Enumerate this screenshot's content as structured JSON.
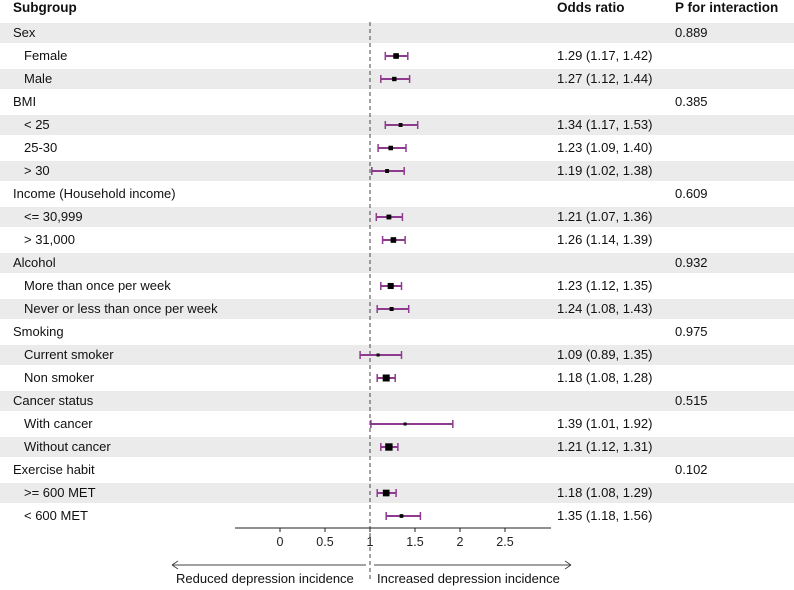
{
  "headers": {
    "subgroup": "Subgroup",
    "odds_ratio": "Odds ratio",
    "p_interaction": "P for interaction"
  },
  "directions": {
    "left": "Reduced depression incidence",
    "right": "Increased depression incidence"
  },
  "colors": {
    "ci_line": "#8e3a8e",
    "point": "#000000",
    "band": "#ebebeb",
    "ref_line": "#444444"
  },
  "chart_data": {
    "type": "forest",
    "xlabel": "",
    "ylabel": "",
    "xlim": [
      -0.5,
      3.0
    ],
    "xticks": [
      0,
      0.5,
      1,
      1.5,
      2,
      2.5
    ],
    "xtick_labels": [
      "0",
      "0.5",
      "1",
      "1.5",
      "2",
      "2.5"
    ],
    "reference": 1,
    "rows": [
      {
        "label": "Sex",
        "group": true,
        "p": "0.889"
      },
      {
        "label": "Female",
        "group": false,
        "or": 1.29,
        "lo": 1.17,
        "hi": 1.42,
        "text": "1.29 (1.17, 1.42)"
      },
      {
        "label": "Male",
        "group": false,
        "or": 1.27,
        "lo": 1.12,
        "hi": 1.44,
        "text": "1.27 (1.12, 1.44)"
      },
      {
        "label": "BMI",
        "group": true,
        "p": "0.385"
      },
      {
        "label": "< 25",
        "group": false,
        "or": 1.34,
        "lo": 1.17,
        "hi": 1.53,
        "text": "1.34 (1.17, 1.53)"
      },
      {
        "label": "25-30",
        "group": false,
        "or": 1.23,
        "lo": 1.09,
        "hi": 1.4,
        "text": "1.23 (1.09, 1.40)"
      },
      {
        "label": "> 30",
        "group": false,
        "or": 1.19,
        "lo": 1.02,
        "hi": 1.38,
        "text": "1.19 (1.02, 1.38)"
      },
      {
        "label": "Income (Household income)",
        "group": true,
        "p": "0.609"
      },
      {
        "label": "<= 30,999",
        "group": false,
        "or": 1.21,
        "lo": 1.07,
        "hi": 1.36,
        "text": "1.21 (1.07, 1.36)"
      },
      {
        "label": "> 31,000",
        "group": false,
        "or": 1.26,
        "lo": 1.14,
        "hi": 1.39,
        "text": "1.26 (1.14, 1.39)"
      },
      {
        "label": "Alcohol",
        "group": true,
        "p": "0.932"
      },
      {
        "label": "More than once per week",
        "group": false,
        "or": 1.23,
        "lo": 1.12,
        "hi": 1.35,
        "text": "1.23 (1.12, 1.35)"
      },
      {
        "label": "Never or less than once per week",
        "group": false,
        "or": 1.24,
        "lo": 1.08,
        "hi": 1.43,
        "text": "1.24 (1.08, 1.43)"
      },
      {
        "label": "Smoking",
        "group": true,
        "p": "0.975"
      },
      {
        "label": "Current smoker",
        "group": false,
        "or": 1.09,
        "lo": 0.89,
        "hi": 1.35,
        "text": "1.09 (0.89, 1.35)"
      },
      {
        "label": "Non smoker",
        "group": false,
        "or": 1.18,
        "lo": 1.08,
        "hi": 1.28,
        "text": "1.18 (1.08, 1.28)"
      },
      {
        "label": "Cancer status",
        "group": true,
        "p": "0.515"
      },
      {
        "label": "With cancer",
        "group": false,
        "or": 1.39,
        "lo": 1.01,
        "hi": 1.92,
        "text": "1.39 (1.01, 1.92)"
      },
      {
        "label": "Without cancer",
        "group": false,
        "or": 1.21,
        "lo": 1.12,
        "hi": 1.31,
        "text": "1.21 (1.12, 1.31)"
      },
      {
        "label": "Exercise habit",
        "group": true,
        "p": "0.102"
      },
      {
        "label": ">= 600 MET",
        "group": false,
        "or": 1.18,
        "lo": 1.08,
        "hi": 1.29,
        "text": "1.18 (1.08, 1.29)"
      },
      {
        "label": "< 600 MET",
        "group": false,
        "or": 1.35,
        "lo": 1.18,
        "hi": 1.56,
        "text": "1.35 (1.18, 1.56)"
      }
    ]
  }
}
